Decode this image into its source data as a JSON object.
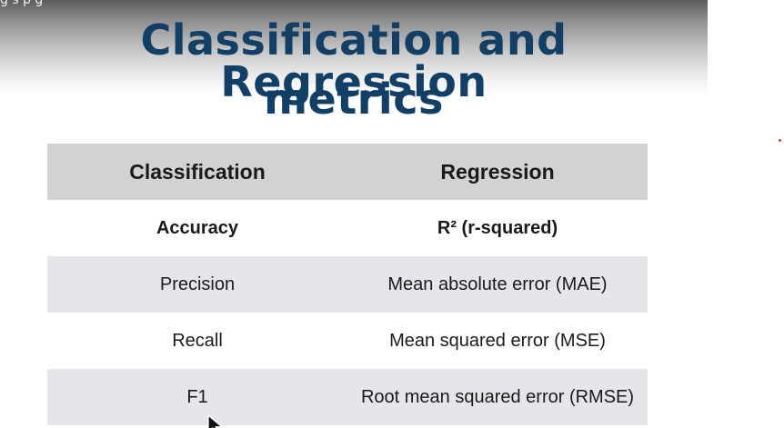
{
  "overlay": {
    "caption": "g s  p  g"
  },
  "slide": {
    "title_line1": "Classification and Regression",
    "title_line2": "metrics"
  },
  "table": {
    "headers": [
      "Classification",
      "Regression"
    ],
    "rows": [
      {
        "classification": "Accuracy",
        "regression": "R² (r-squared)"
      },
      {
        "classification": "Precision",
        "regression": "Mean absolute error (MAE)"
      },
      {
        "classification": "Recall",
        "regression": "Mean squared error (MSE)"
      },
      {
        "classification": "F1",
        "regression": "Root mean squared error (RMSE)"
      }
    ]
  },
  "colors": {
    "title": "#123f66",
    "header_bg": "#d2d2d2",
    "shaded_row_bg": "#e6e6ea",
    "laser_dot": "#e23b3b"
  },
  "icons": {
    "pointer": "mouse-pointer-icon"
  }
}
